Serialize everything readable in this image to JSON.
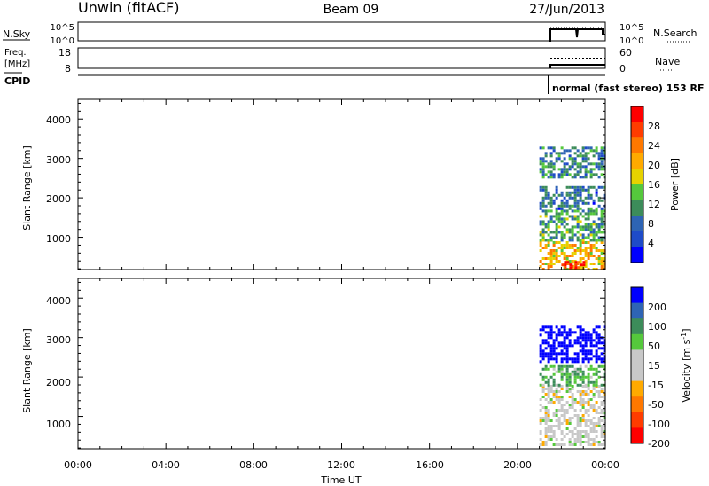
{
  "header": {
    "station": "Unwin (fitACF)",
    "beam": "Beam 09",
    "date": "27/Jun/2013"
  },
  "noise_panel": {
    "left_label": "N.Sky",
    "right_label": "N.Search",
    "left_ticks": [
      "10^5",
      "10^0"
    ],
    "right_ticks": [
      "10^5",
      "10^0"
    ]
  },
  "freq_panel": {
    "left_label_line1": "Freq.",
    "left_label_line2": "[MHz]",
    "right_label": "Nave",
    "left_ticks": [
      "18",
      "8"
    ],
    "right_ticks": [
      "60",
      "0"
    ]
  },
  "cpid": {
    "label": "CPID",
    "value": "normal (fast stereo) 153 RF"
  },
  "time_axis": {
    "label": "Time UT",
    "ticks": [
      "00:00",
      "04:00",
      "08:00",
      "12:00",
      "16:00",
      "20:00",
      "00:00"
    ]
  },
  "colors": {
    "power_scale": [
      "#0000ff",
      "#1e4bc8",
      "#2e64b4",
      "#3c8c5a",
      "#55c83c",
      "#e6d200",
      "#ffaa00",
      "#ff7800",
      "#ff3c00",
      "#ff0000"
    ],
    "velocity_scale": [
      "#ff0000",
      "#ff3c00",
      "#ff7800",
      "#ffaa00",
      "#c8c8c8",
      "#c8c8c8",
      "#55c83c",
      "#3c8c5a",
      "#2e64b4",
      "#0000ff"
    ]
  },
  "chart_data": [
    {
      "type": "heatmap",
      "panel": "power",
      "ylabel": "Slant Range [km]",
      "xlabel": "",
      "ylim": [
        180,
        4500
      ],
      "xlim": [
        "00:00",
        "24:00"
      ],
      "yticks": [
        "1000",
        "2000",
        "3000",
        "4000"
      ],
      "colorbar": {
        "label": "Power [dB]",
        "range": [
          0,
          32
        ],
        "ticks": [
          "28",
          "24",
          "20",
          "16",
          "12",
          "8",
          "4"
        ]
      },
      "regions": [
        {
          "t_start": 21.0,
          "t_end": 24.0,
          "range_start": 200,
          "range_end": 900,
          "level_db": 20
        },
        {
          "t_start": 21.0,
          "t_end": 24.0,
          "range_start": 900,
          "range_end": 1700,
          "level_db": 12
        },
        {
          "t_start": 21.0,
          "t_end": 24.0,
          "range_start": 1700,
          "range_end": 2300,
          "level_db": 8
        },
        {
          "t_start": 21.0,
          "t_end": 24.0,
          "range_start": 2500,
          "range_end": 3300,
          "level_db": 10
        },
        {
          "t_start": 22.0,
          "t_end": 23.0,
          "range_start": 200,
          "range_end": 400,
          "level_db": 28
        }
      ]
    },
    {
      "type": "heatmap",
      "panel": "velocity",
      "ylabel": "Slant Range [km]",
      "xlabel": "Time UT",
      "ylim": [
        180,
        4500
      ],
      "xlim": [
        "00:00",
        "24:00"
      ],
      "yticks": [
        "1000",
        "2000",
        "3000",
        "4000"
      ],
      "colorbar": {
        "label": "Velocity [m s^-1]",
        "range": [
          -250,
          250
        ],
        "ticks": [
          "200",
          "100",
          "50",
          "15",
          "-15",
          "-50",
          "-100",
          "-200"
        ]
      },
      "regions": [
        {
          "t_start": 21.0,
          "t_end": 24.0,
          "range_start": 300,
          "range_end": 1800,
          "velocity": 0
        },
        {
          "t_start": 21.0,
          "t_end": 24.0,
          "range_start": 1800,
          "range_end": 2300,
          "velocity": 30
        },
        {
          "t_start": 21.0,
          "t_end": 24.0,
          "range_start": 2400,
          "range_end": 3300,
          "velocity": 200
        }
      ]
    }
  ]
}
